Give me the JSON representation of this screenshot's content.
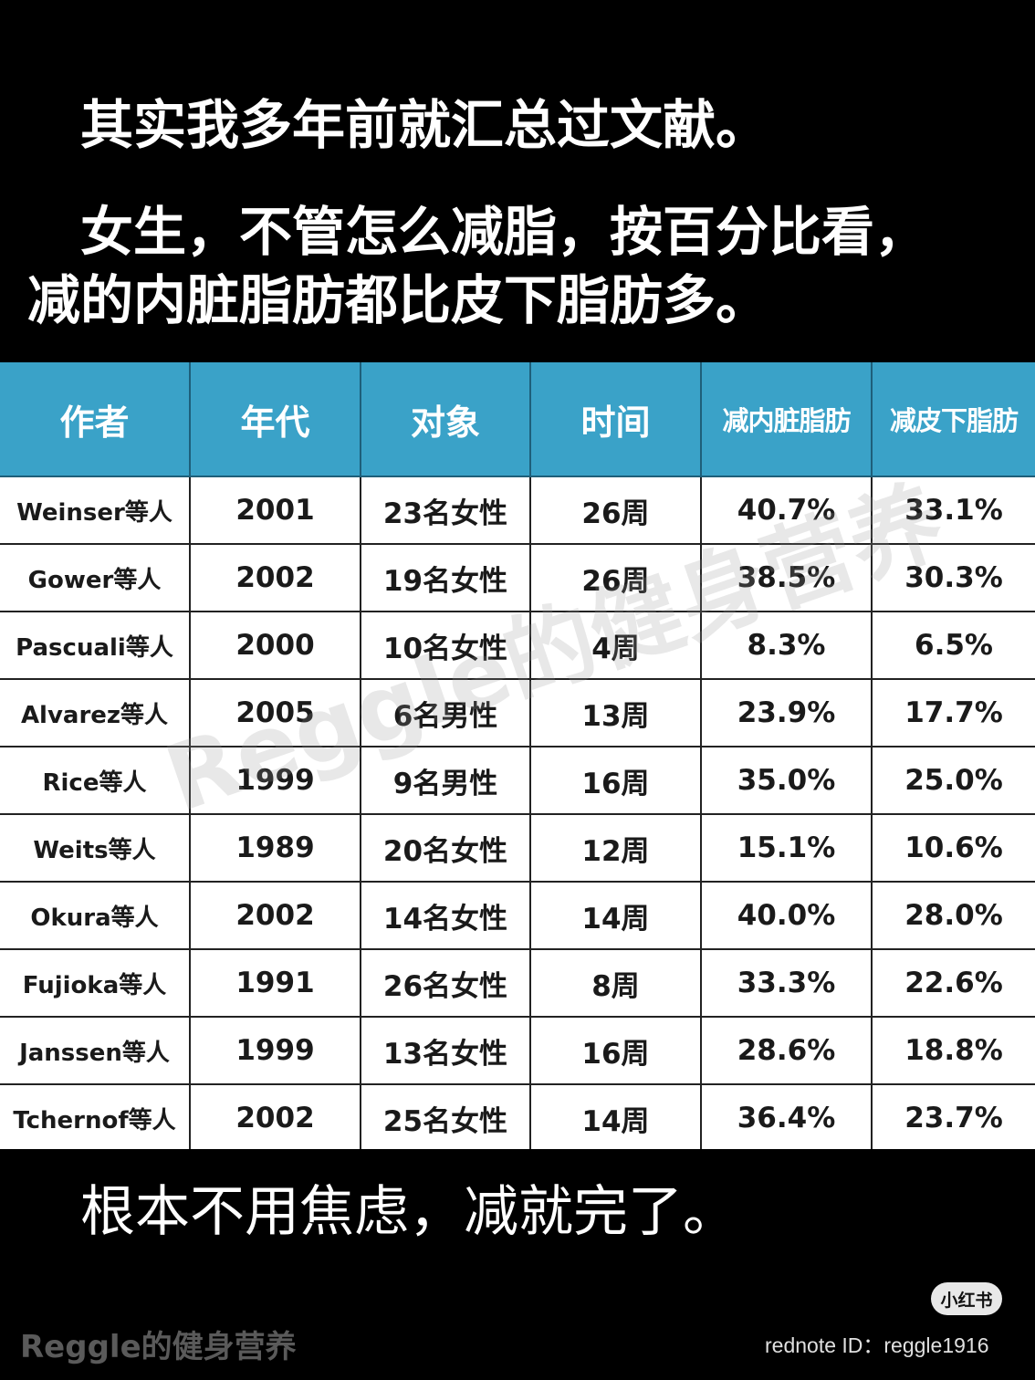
{
  "captions": {
    "line1": "其实我多年前就汇总过文献。",
    "line2": "女生，不管怎么减脂，按百分比看，",
    "line3": "减的内脏脂肪都比皮下脂肪多。",
    "line4": "根本不用焦虑，减就完了。"
  },
  "table": {
    "headers": [
      "作者",
      "年代",
      "对象",
      "时间",
      "减内脏脂肪",
      "减皮下脂肪"
    ],
    "header_color": "#3aa2c8",
    "rows": [
      [
        "Weinser等人",
        "2001",
        "23名女性",
        "26周",
        "40.7%",
        "33.1%"
      ],
      [
        "Gower等人",
        "2002",
        "19名女性",
        "26周",
        "38.5%",
        "30.3%"
      ],
      [
        "Pascuali等人",
        "2000",
        "10名女性",
        "4周",
        "8.3%",
        "6.5%"
      ],
      [
        "Alvarez等人",
        "2005",
        "6名男性",
        "13周",
        "23.9%",
        "17.7%"
      ],
      [
        "Rice等人",
        "1999",
        "9名男性",
        "16周",
        "35.0%",
        "25.0%"
      ],
      [
        "Weits等人",
        "1989",
        "20名女性",
        "12周",
        "15.1%",
        "10.6%"
      ],
      [
        "Okura等人",
        "2002",
        "14名女性",
        "14周",
        "40.0%",
        "28.0%"
      ],
      [
        "Fujioka等人",
        "1991",
        "26名女性",
        "8周",
        "33.3%",
        "22.6%"
      ],
      [
        "Janssen等人",
        "1999",
        "13名女性",
        "16周",
        "28.6%",
        "18.8%"
      ],
      [
        "Tchernof等人",
        "2002",
        "25名女性",
        "14周",
        "36.4%",
        "23.7%"
      ]
    ]
  },
  "watermark": "Reggle的健身营养",
  "footer": {
    "brand": "Reggle的健身营养",
    "logo": "小红书",
    "rednote_id": "rednote ID：reggle1916"
  }
}
